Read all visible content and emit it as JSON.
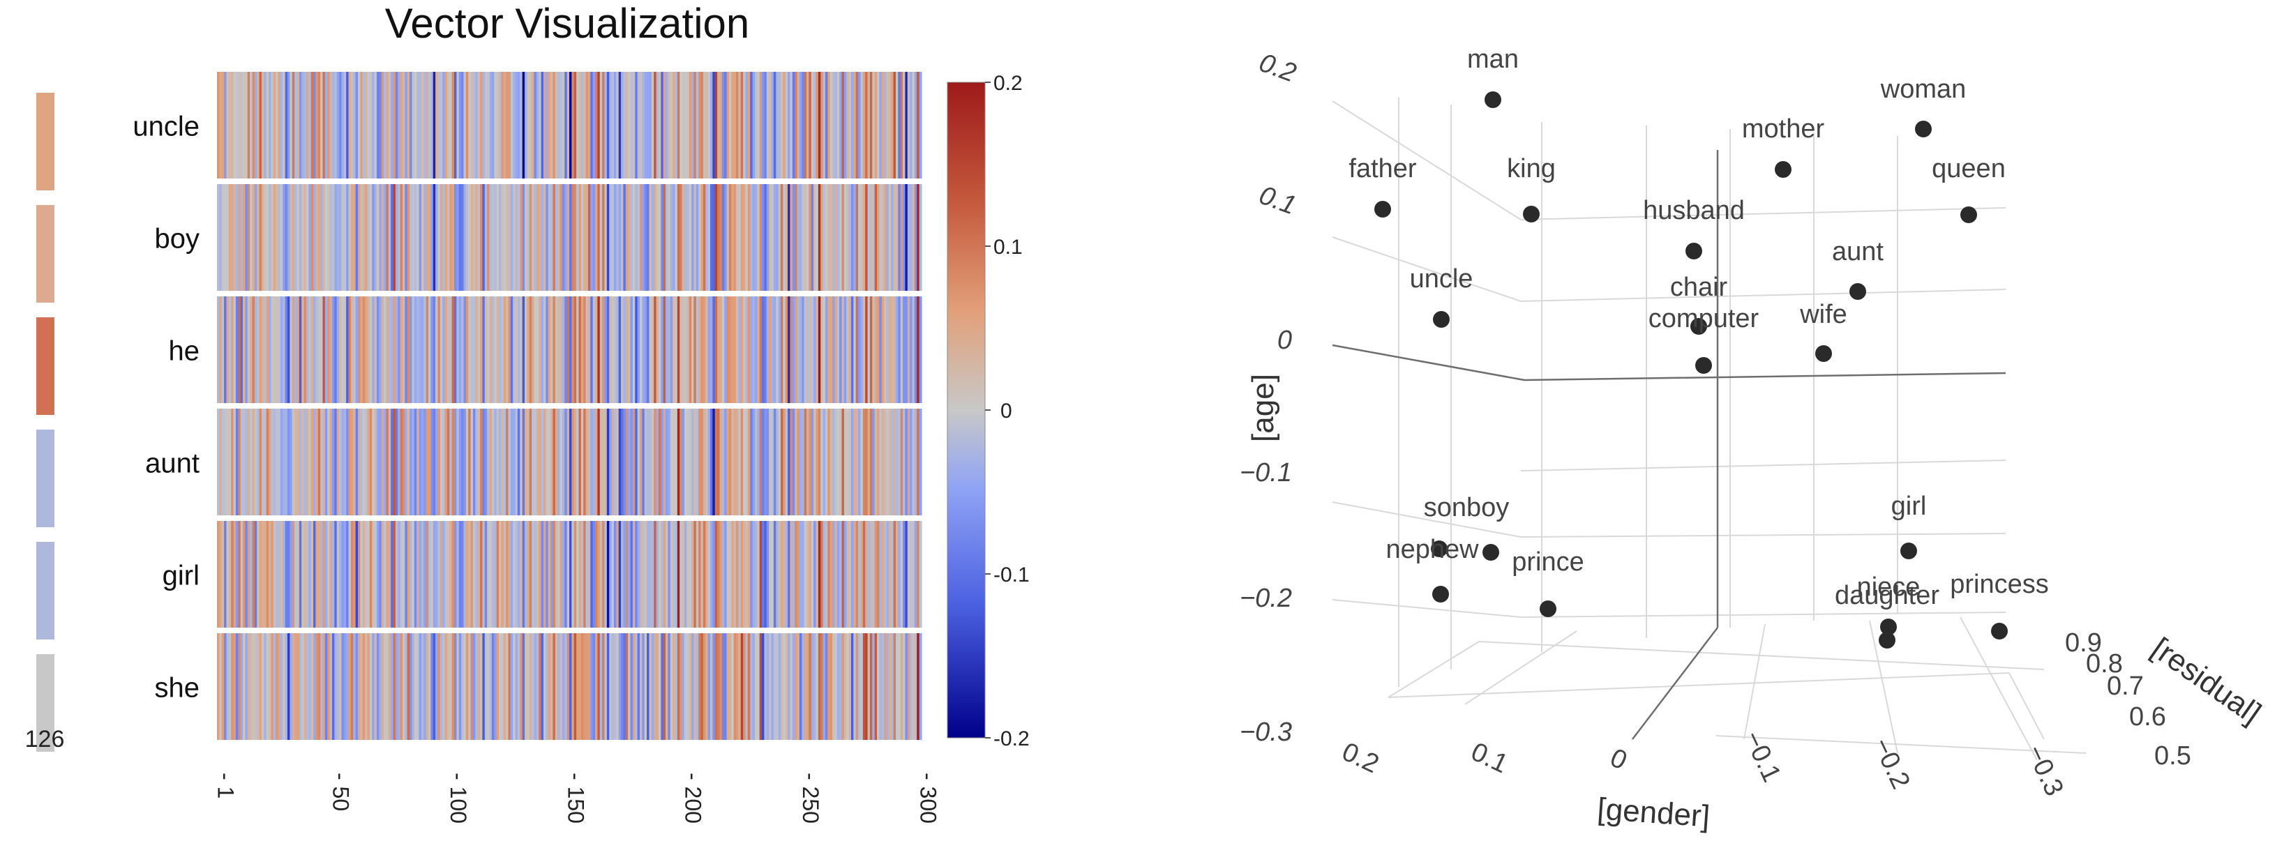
{
  "chart_data": [
    {
      "type": "heatmap",
      "title": "Vector Visualization",
      "rows": [
        "uncle",
        "boy",
        "he",
        "aunt",
        "girl",
        "she"
      ],
      "x_ticks": [
        "1",
        "50",
        "100",
        "150",
        "200",
        "250",
        "300"
      ],
      "x_range": [
        1,
        300
      ],
      "colorbar": {
        "min": -0.2,
        "max": 0.2,
        "ticks": [
          "0.2",
          "0.1",
          "0",
          "-0.1",
          "-0.2"
        ],
        "colors": [
          "#00008b",
          "#4a5fe0",
          "#8fa3f5",
          "#c8c8c8",
          "#e2a07a",
          "#c4583c",
          "#9e1a1a"
        ]
      },
      "side_bar": {
        "label": "126",
        "values": [
          0.06,
          0.05,
          0.11,
          -0.03,
          -0.03,
          0.0
        ]
      }
    },
    {
      "type": "scatter",
      "axes": {
        "x": {
          "label": "[gender]",
          "ticks": [
            "0.2",
            "0.1",
            "0",
            "−0.1",
            "−0.2",
            "−0.3"
          ]
        },
        "y": {
          "label": "[age]",
          "ticks": [
            "0.2",
            "0.1",
            "0",
            "−0.1",
            "−0.2",
            "−0.3"
          ]
        },
        "z": {
          "label": "[residual]",
          "ticks": [
            "0.9",
            "0.8",
            "0.7",
            "0.6",
            "0.5"
          ]
        }
      },
      "points": [
        {
          "label": "man"
        },
        {
          "label": "woman"
        },
        {
          "label": "mother"
        },
        {
          "label": "father"
        },
        {
          "label": "king"
        },
        {
          "label": "queen"
        },
        {
          "label": "husband"
        },
        {
          "label": "aunt"
        },
        {
          "label": "uncle"
        },
        {
          "label": "chair"
        },
        {
          "label": "computer"
        },
        {
          "label": "wife"
        },
        {
          "label": "sonboy"
        },
        {
          "label": "girl"
        },
        {
          "label": "nephew"
        },
        {
          "label": "prince"
        },
        {
          "label": "niece"
        },
        {
          "label": "daughter"
        },
        {
          "label": "princess"
        }
      ]
    }
  ]
}
